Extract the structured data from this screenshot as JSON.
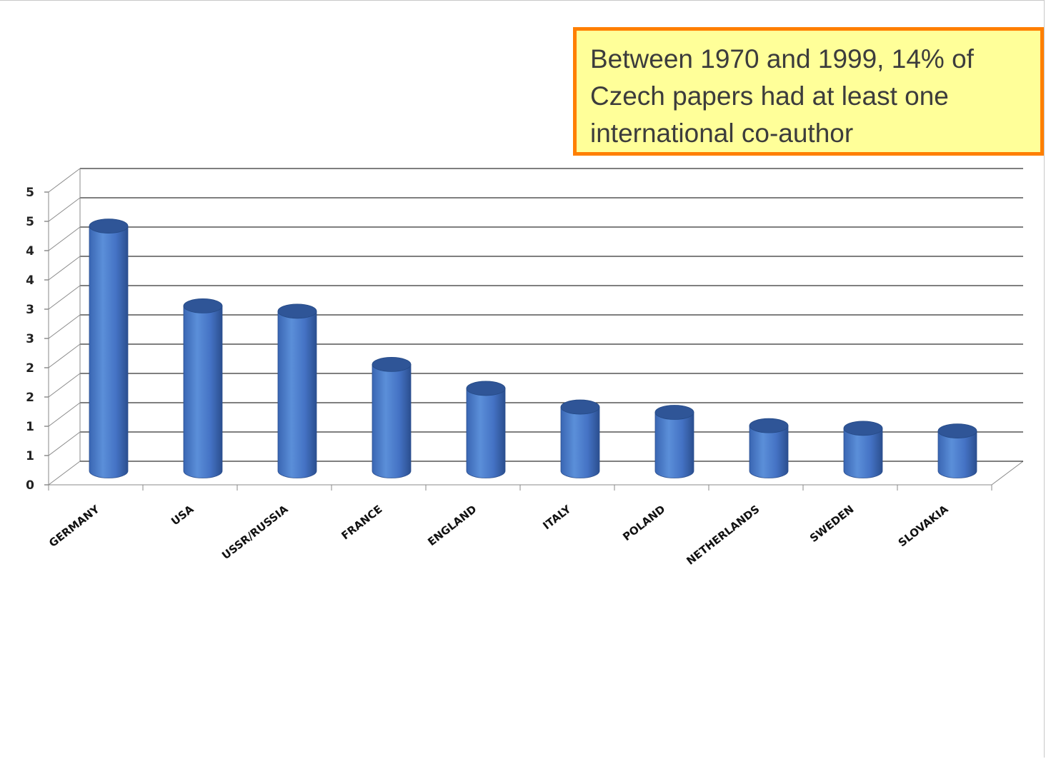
{
  "callout": {
    "text": "Between 1970 and 1999, 14% of Czech papers had at least one international co-author"
  },
  "colors": {
    "bar_body": "#4472c4",
    "bar_top": "#2f5597",
    "callout_fill": "#ffff99",
    "callout_border": "#ff7f00",
    "grid": "#333333"
  },
  "chart_data": {
    "type": "bar",
    "style": "3d-cylinder",
    "categories": [
      "GERMANY",
      "USA",
      "USSR/RUSSIA",
      "FRANCE",
      "ENGLAND",
      "ITALY",
      "POLAND",
      "NETHERLANDS",
      "SWEDEN",
      "SLOVAKIA"
    ],
    "values": [
      4.6,
      3.1,
      3.0,
      2.0,
      1.55,
      1.2,
      1.1,
      0.85,
      0.8,
      0.75
    ],
    "y_tick_labels": [
      "0",
      "1",
      "1",
      "2",
      "2",
      "3",
      "3",
      "4",
      "4",
      "5",
      "5"
    ],
    "ylim": [
      0,
      5.5
    ],
    "title": "",
    "xlabel": "",
    "ylabel": "",
    "grid": true,
    "legend": "none"
  }
}
